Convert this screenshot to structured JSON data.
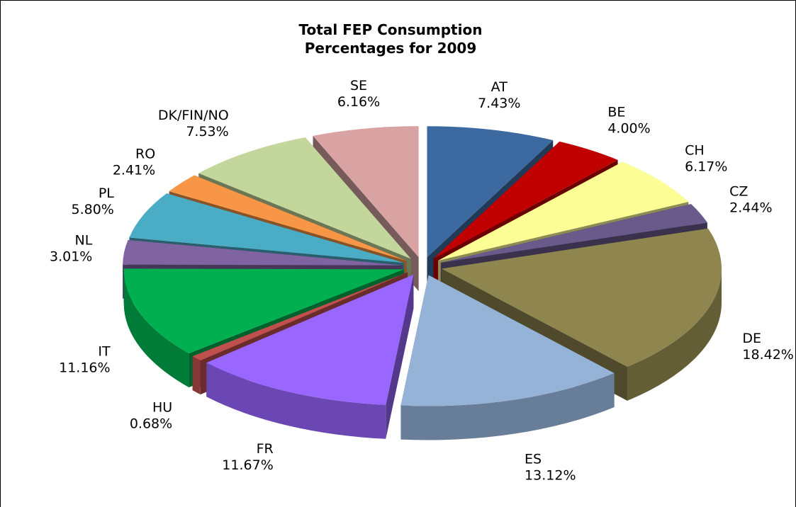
{
  "chart_data": {
    "type": "pie3d",
    "title": "Total FEP Consumption Percentages for 2009",
    "categories": [
      "AT",
      "BE",
      "CH",
      "CZ",
      "DE",
      "ES",
      "FR",
      "HU",
      "IT",
      "NL",
      "PL",
      "RO",
      "DK/FIN/NO",
      "SE"
    ],
    "values": [
      7.43,
      4.0,
      6.17,
      2.44,
      18.42,
      13.12,
      11.67,
      0.68,
      11.16,
      3.01,
      5.8,
      2.41,
      7.53,
      6.16
    ],
    "value_labels": [
      "7.43%",
      "4.00%",
      "6.17%",
      "2.44%",
      "18.42%",
      "13.12%",
      "11.67%",
      "0.68%",
      "11.16%",
      "3.01%",
      "5.80%",
      "2.41%",
      "7.53%",
      "6.16%"
    ],
    "colors": [
      "#3c6aa0",
      "#c00000",
      "#fdfd96",
      "#6a5a8c",
      "#8f864f",
      "#95b3d7",
      "#9966ff",
      "#c0504d",
      "#00b050",
      "#8064a2",
      "#4bacc6",
      "#f79646",
      "#c3d69b",
      "#d9a3a3"
    ]
  }
}
